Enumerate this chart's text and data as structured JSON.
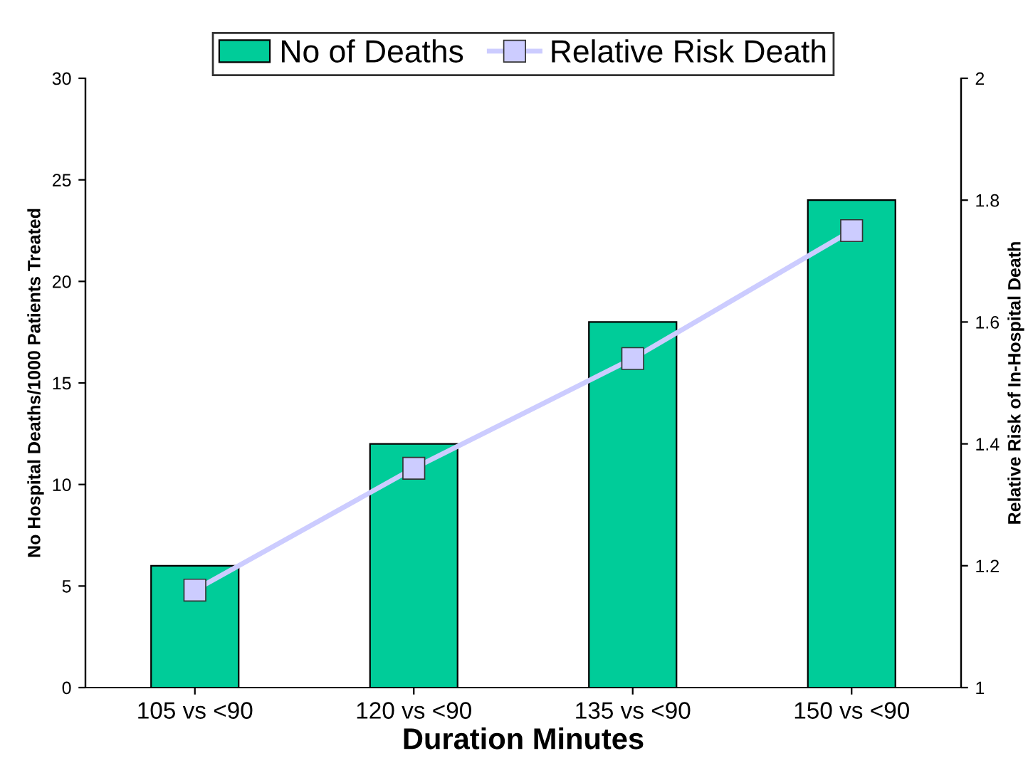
{
  "chart_data": {
    "type": "bar",
    "xlabel": "Duration Minutes",
    "ylabel": "No Hospital Deaths/1000 Patients Treated",
    "y2label": "Relative Risk of In-Hospital Death",
    "categories": [
      "105 vs <90",
      "120 vs <90",
      "135 vs <90",
      "150 vs <90"
    ],
    "series": [
      {
        "name": "No of Deaths",
        "color": "#00cc99",
        "values": [
          6,
          12,
          18,
          24
        ]
      },
      {
        "name": "Relative Risk Death",
        "type": "line",
        "axis": "y2",
        "color": "#ccccff",
        "marker": "square",
        "values": [
          1.16,
          1.36,
          1.54,
          1.75
        ]
      }
    ],
    "ylim": [
      0,
      30
    ],
    "yticks": [
      0,
      5,
      10,
      15,
      20,
      25,
      30
    ],
    "y2lim": [
      1,
      2
    ],
    "y2ticks": [
      1,
      1.2,
      1.4,
      1.6,
      1.8,
      2
    ],
    "legend": "top",
    "grid": false
  }
}
